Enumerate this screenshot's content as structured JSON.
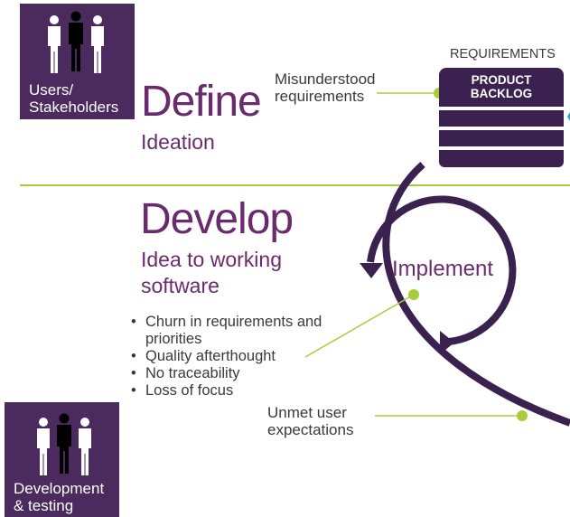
{
  "define": {
    "title": "Define",
    "subtitle": "Ideation"
  },
  "develop": {
    "title": "Develop",
    "subtitle_line1": "Idea to working",
    "subtitle_line2": "software"
  },
  "roles": {
    "users": {
      "line1": "Users/",
      "line2": "Stakeholders"
    },
    "devtest": {
      "line1": "Development",
      "line2": "& testing"
    }
  },
  "requirements_label": "REQUIREMENTS",
  "backlog": {
    "line1": "PRODUCT",
    "line2": "BACKLOG"
  },
  "callouts": {
    "misunderstood_line1": "Misunderstood",
    "misunderstood_line2": "requirements",
    "unmet_line1": "Unmet user",
    "unmet_line2": "expectations",
    "implement": "Implement"
  },
  "problems": [
    "Churn in requirements and",
    "priorities",
    "Quality afterthought",
    "No traceability",
    "Loss of focus"
  ],
  "colors": {
    "purple_dark": "#3b2150",
    "purple_box": "#4b2a5e",
    "purple_text": "#6a2b6e",
    "green": "#a8cd3a",
    "teal": "#2aa6c8"
  }
}
